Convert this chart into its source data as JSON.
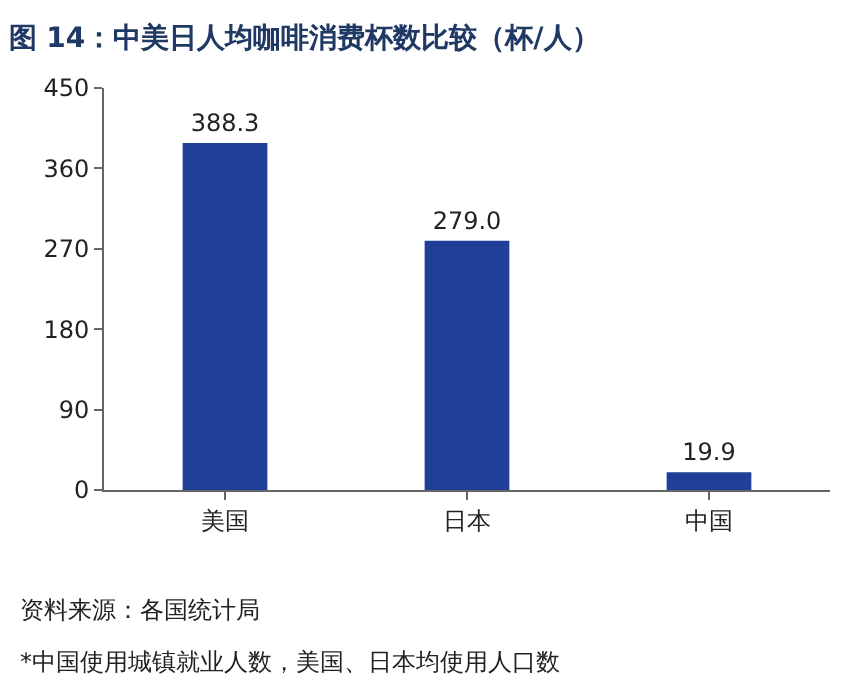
{
  "chart_data": {
    "type": "bar",
    "title": "图 14：中美日人均咖啡消费杯数比较（杯/人）",
    "categories": [
      "美国",
      "日本",
      "中国"
    ],
    "values": [
      388.3,
      279.0,
      19.9
    ],
    "value_labels": [
      "388.3",
      "279.0",
      "19.9"
    ],
    "color": "#1f3f99",
    "ylim": [
      0,
      450
    ],
    "yticks": [
      0,
      90,
      180,
      270,
      360,
      450
    ],
    "grid": false,
    "annotations": [
      "资料来源：各国统计局",
      "*中国使用城镇就业人数，美国、日本均使用人口数"
    ]
  }
}
